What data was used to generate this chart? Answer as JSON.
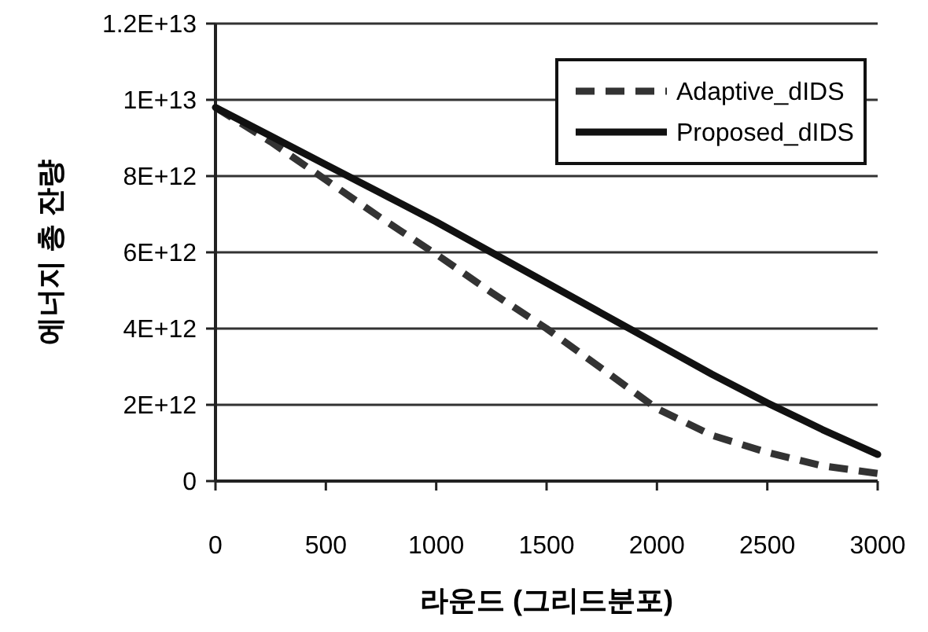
{
  "chart_data": {
    "type": "line",
    "xlabel": "라운드 (그리드분포)",
    "ylabel": "에너지 총 잔량",
    "x": [
      0,
      250,
      500,
      750,
      1000,
      1250,
      1500,
      1750,
      2000,
      2250,
      2500,
      2750,
      3000
    ],
    "series": [
      {
        "name": "Adaptive_dIDS",
        "color": "#333333",
        "line_style": "dashed",
        "values": [
          9800000000000.0,
          8900000000000.0,
          7900000000000.0,
          6900000000000.0,
          5950000000000.0,
          4950000000000.0,
          4000000000000.0,
          2950000000000.0,
          1900000000000.0,
          1200000000000.0,
          750000000000.0,
          400000000000.0,
          200000000000.0
        ]
      },
      {
        "name": "Proposed_dIDS",
        "color": "#111111",
        "line_style": "solid",
        "values": [
          9800000000000.0,
          9050000000000.0,
          8300000000000.0,
          7550000000000.0,
          6800000000000.0,
          6000000000000.0,
          5200000000000.0,
          4400000000000.0,
          3600000000000.0,
          2800000000000.0,
          2050000000000.0,
          1350000000000.0,
          700000000000.0
        ]
      }
    ],
    "xlim": [
      0,
      3000
    ],
    "xticks": [
      0,
      500,
      1000,
      1500,
      2000,
      2500,
      3000
    ],
    "ylim": [
      0,
      12000000000000.0
    ],
    "yticks": [
      0,
      {
        "value": 2000000000000.0,
        "label": "2E+12"
      },
      {
        "value": 4000000000000.0,
        "label": "4E+12"
      },
      {
        "value": 6000000000000.0,
        "label": "6E+12"
      },
      {
        "value": 8000000000000.0,
        "label": "8E+12"
      },
      {
        "value": 10000000000000.0,
        "label": "1E+13"
      },
      {
        "value": 12000000000000.0,
        "label": "1.2E+13"
      }
    ],
    "grid": "y",
    "legend": "top right",
    "marker": "none"
  }
}
